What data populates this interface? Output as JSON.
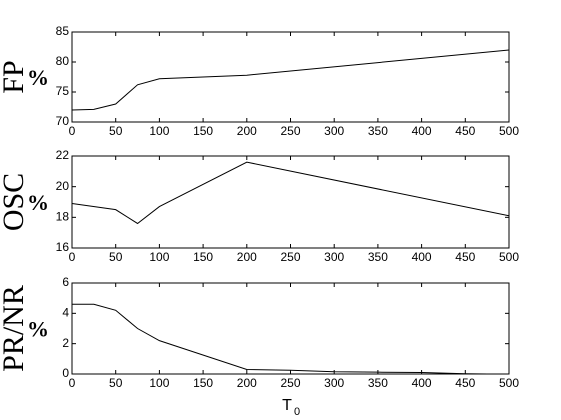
{
  "chart_data": [
    {
      "type": "line",
      "ylabel": "FP",
      "ylabel_unit": "%",
      "x": [
        0,
        25,
        50,
        75,
        100,
        200,
        500
      ],
      "values": [
        72,
        72.1,
        73,
        76.2,
        77.2,
        77.8,
        82
      ],
      "color": "#000000",
      "xlim": [
        0,
        500
      ],
      "xticks": [
        0,
        50,
        100,
        150,
        200,
        250,
        300,
        350,
        400,
        450,
        500
      ],
      "ylim": [
        70,
        85
      ],
      "yticks": [
        70,
        75,
        80,
        85
      ]
    },
    {
      "type": "line",
      "ylabel": "OSC",
      "ylabel_unit": "%",
      "x": [
        0,
        50,
        75,
        100,
        200,
        500
      ],
      "values": [
        18.9,
        18.5,
        17.6,
        18.7,
        21.6,
        18.1
      ],
      "color": "#000000",
      "xlim": [
        0,
        500
      ],
      "xticks": [
        0,
        50,
        100,
        150,
        200,
        250,
        300,
        350,
        400,
        450,
        500
      ],
      "ylim": [
        16,
        22
      ],
      "yticks": [
        16,
        18,
        20,
        22
      ]
    },
    {
      "type": "line",
      "ylabel": "PR/NR",
      "ylabel_unit": "%",
      "xlabel": "T",
      "xlabel_subscript": "0",
      "x": [
        0,
        25,
        50,
        75,
        100,
        200,
        250,
        300,
        350,
        400,
        450,
        475
      ],
      "values": [
        4.6,
        4.6,
        4.2,
        3.0,
        2.2,
        0.3,
        0.25,
        0.15,
        0.12,
        0.1,
        0.02,
        0
      ],
      "color": "#000000",
      "xlim": [
        0,
        500
      ],
      "xticks": [
        0,
        50,
        100,
        150,
        200,
        250,
        300,
        350,
        400,
        450,
        500
      ],
      "ylim": [
        0,
        6
      ],
      "yticks": [
        0,
        2,
        4,
        6
      ]
    }
  ]
}
